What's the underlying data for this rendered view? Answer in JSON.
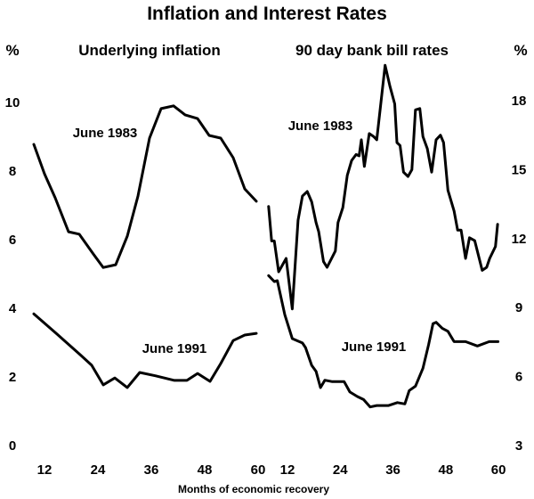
{
  "chart_data": {
    "title": "Inflation and Interest Rates",
    "xlabel": "Months of economic recovery",
    "colors": {
      "line": "#000000",
      "background": "#ffffff"
    },
    "grid": false,
    "panels": [
      {
        "type": "line",
        "subtitle": "Underlying inflation",
        "ylabel": "%",
        "axis_side": "left",
        "ylim": [
          0,
          10
        ],
        "yticks": [
          "0",
          "2",
          "4",
          "6",
          "8",
          "10"
        ],
        "xlim": [
          9,
          60
        ],
        "xticks": [
          "12",
          "24",
          "36",
          "48",
          "60"
        ],
        "series": [
          {
            "name": "June 1983",
            "x": [
              9.6,
              12,
              14.4,
              17.4,
              19.8,
              23,
              25.2,
              28,
              30.6,
              33,
              35.6,
              38.2,
              41,
              43.6,
              46.4,
              49,
              51.6,
              54.4,
              57,
              59.6
            ],
            "y": [
              8.78,
              7.92,
              7.22,
              6.23,
              6.16,
              5.58,
              5.19,
              5.27,
              6.1,
              7.27,
              8.96,
              9.82,
              9.9,
              9.64,
              9.53,
              9.04,
              8.96,
              8.39,
              7.48,
              7.12
            ]
          },
          {
            "name": "June 1991",
            "x": [
              9.6,
              14.8,
              20,
              22.6,
              25.2,
              27.8,
              30.6,
              33.4,
              37,
              41.2,
              44,
              46.4,
              49.2,
              51.6,
              54.4,
              57,
              59.6
            ],
            "y": [
              3.84,
              3.25,
              2.65,
              2.34,
              1.77,
              1.97,
              1.69,
              2.13,
              2.03,
              1.9,
              1.9,
              2.1,
              1.87,
              2.39,
              3.06,
              3.22,
              3.27
            ]
          }
        ]
      },
      {
        "type": "line",
        "subtitle": "90 day bank bill rates",
        "ylabel": "%",
        "axis_side": "right",
        "ylim": [
          3,
          18
        ],
        "yticks": [
          "3",
          "6",
          "9",
          "12",
          "15",
          "18"
        ],
        "xlim": [
          7.7,
          60
        ],
        "xticks": [
          "12",
          "24",
          "36",
          "48",
          "60"
        ],
        "series": [
          {
            "name": "June 1983",
            "x": [
              7.7,
              8.4,
              9.0,
              10.0,
              11.7,
              13.1,
              14.4,
              15.4,
              16.5,
              17.5,
              18.5,
              19.1,
              20.2,
              21.0,
              22.9,
              23.5,
              24.6,
              25.6,
              26.6,
              27.6,
              28.3,
              28.8,
              29.5,
              30.6,
              31.6,
              32.3,
              33.0,
              34.2,
              35.3,
              36.4,
              36.9,
              37.6,
              38.4,
              39.4,
              40.3,
              41.1,
              42.1,
              42.8,
              43.8,
              44.8,
              45.8,
              46.8,
              47.5,
              48.5,
              49.9,
              50.7,
              51.5,
              52.5,
              53.4,
              54.6,
              56.3,
              57.3,
              58.0,
              59.3,
              59.8
            ],
            "y": [
              13.4,
              11.9,
              11.9,
              10.56,
              11.14,
              8.94,
              12.8,
              13.85,
              14.05,
              13.6,
              12.7,
              12.3,
              11.0,
              10.75,
              11.46,
              12.7,
              13.35,
              14.75,
              15.4,
              15.66,
              15.6,
              16.3,
              15.14,
              16.57,
              16.44,
              16.3,
              17.47,
              19.54,
              18.63,
              17.86,
              16.18,
              16.05,
              14.89,
              14.7,
              15.0,
              17.6,
              17.66,
              16.44,
              15.92,
              14.89,
              16.3,
              16.5,
              16.18,
              14.1,
              13.2,
              12.37,
              12.37,
              11.14,
              12.04,
              11.91,
              10.62,
              10.75,
              11.14,
              11.66,
              12.62
            ]
          },
          {
            "name": "June 1991",
            "x": [
              7.7,
              9.0,
              9.7,
              11.4,
              13.1,
              15.4,
              16.1,
              17.5,
              18.5,
              19.5,
              20.5,
              22.2,
              24.9,
              26.2,
              27.9,
              29.3,
              30.8,
              32.3,
              35.0,
              37.0,
              38.7,
              39.7,
              41.1,
              42.8,
              44.1,
              45.1,
              45.8,
              47.2,
              48.5,
              49.9,
              52.5,
              55.2,
              57.9,
              59.9
            ],
            "y": [
              10.39,
              10.13,
              10.17,
              8.69,
              7.65,
              7.46,
              7.26,
              6.49,
              6.23,
              5.52,
              5.84,
              5.78,
              5.78,
              5.33,
              5.13,
              5.0,
              4.68,
              4.74,
              4.74,
              4.87,
              4.81,
              5.39,
              5.58,
              6.36,
              7.39,
              8.3,
              8.36,
              8.1,
              7.97,
              7.52,
              7.52,
              7.33,
              7.52,
              7.52
            ]
          }
        ]
      }
    ]
  }
}
